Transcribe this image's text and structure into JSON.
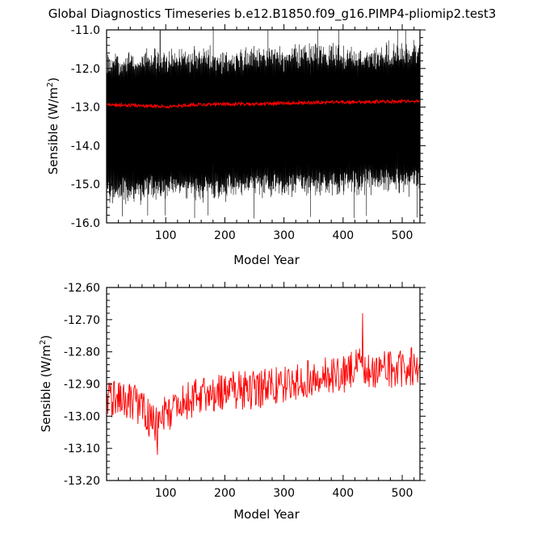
{
  "title": "Global Diagnostics Timeseries b.e12.B1850.f09_g16.PIMP4-pliomip2.test3",
  "colors": {
    "raw_series": "#000000",
    "smooth_series": "#ff0000",
    "axis": "#000000"
  },
  "chart_data": [
    {
      "type": "line",
      "xlabel": "Model Year",
      "ylabel_main": "Sensible (W/m",
      "ylabel_sup": "2",
      "ylabel_close": ")",
      "xlim": [
        0,
        530
      ],
      "ylim": [
        -16.0,
        -11.0
      ],
      "xticks": [
        100,
        200,
        300,
        400,
        500
      ],
      "yticks": [
        -16.0,
        -15.0,
        -14.0,
        -13.0,
        -12.0,
        -11.0
      ],
      "ytick_labels": [
        "-16.0",
        "-15.0",
        "-14.0",
        "-13.0",
        "-12.0",
        "-11.0"
      ],
      "series": [
        {
          "style": "monthly",
          "color": "#000000",
          "description": "monthly values oscillating seasonally",
          "x": [
            0,
            50,
            100,
            150,
            200,
            250,
            300,
            350,
            400,
            450,
            500,
            530
          ],
          "upper": [
            -11.8,
            -11.7,
            -11.7,
            -11.6,
            -11.7,
            -11.6,
            -11.6,
            -11.5,
            -11.6,
            -11.6,
            -11.5,
            -11.5
          ],
          "lower": [
            -15.2,
            -15.3,
            -15.2,
            -15.2,
            -15.2,
            -15.1,
            -15.1,
            -15.1,
            -15.1,
            -15.0,
            -15.0,
            -15.1
          ],
          "upper_extreme": -11.0,
          "lower_extreme": -15.8
        },
        {
          "style": "annual",
          "color": "#ff0000",
          "x": [
            0,
            50,
            100,
            150,
            200,
            250,
            300,
            350,
            400,
            450,
            500,
            530
          ],
          "values": [
            -12.94,
            -12.96,
            -12.99,
            -12.94,
            -12.92,
            -12.92,
            -12.9,
            -12.88,
            -12.87,
            -12.86,
            -12.85,
            -12.85
          ]
        }
      ]
    },
    {
      "type": "line",
      "xlabel": "Model Year",
      "ylabel_main": "Sensible (W/m",
      "ylabel_sup": "2",
      "ylabel_close": ")",
      "xlim": [
        0,
        530
      ],
      "ylim": [
        -13.2,
        -12.6
      ],
      "xticks": [
        100,
        200,
        300,
        400,
        500
      ],
      "yticks": [
        -13.2,
        -13.1,
        -13.0,
        -12.9,
        -12.8,
        -12.7,
        -12.6
      ],
      "ytick_labels": [
        "-13.20",
        "-13.10",
        "-13.00",
        "-12.90",
        "-12.80",
        "-12.70",
        "-12.60"
      ],
      "series": [
        {
          "style": "annual",
          "color": "#ff0000",
          "x": [
            0,
            50,
            85,
            100,
            150,
            200,
            250,
            300,
            350,
            400,
            430,
            450,
            500,
            530
          ],
          "values": [
            -12.94,
            -12.96,
            -13.03,
            -12.99,
            -12.94,
            -12.92,
            -12.92,
            -12.9,
            -12.88,
            -12.87,
            -12.84,
            -12.86,
            -12.85,
            -12.84
          ],
          "noise_amplitude": 0.06,
          "min": {
            "x": 86,
            "y": -13.12
          },
          "max": {
            "x": 433,
            "y": -12.68
          }
        }
      ]
    }
  ]
}
